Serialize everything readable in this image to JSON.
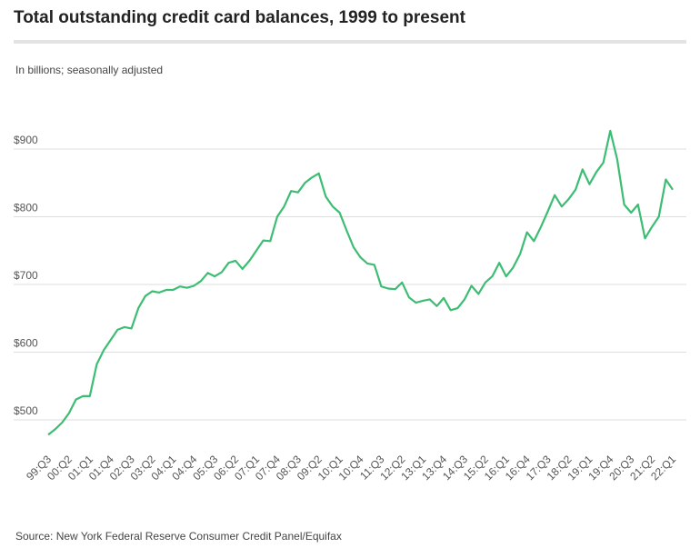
{
  "chart_data": {
    "type": "line",
    "title": "Total outstanding credit card balances, 1999 to present",
    "subtitle": "In billions; seasonally adjusted",
    "source": "Source: New York Federal Reserve Consumer Credit Panel/Equifax",
    "categories": [
      "99:Q3",
      null,
      null,
      "00:Q2",
      null,
      null,
      "01:Q1",
      null,
      null,
      "01:Q4",
      null,
      null,
      "02:Q3",
      null,
      null,
      "03:Q2",
      null,
      null,
      "04:Q1",
      null,
      null,
      "04:Q4",
      null,
      null,
      "05:Q3",
      null,
      null,
      "06:Q2",
      null,
      null,
      "07:Q1",
      null,
      null,
      "07:Q4",
      null,
      null,
      "08:Q3",
      null,
      null,
      "09:Q2",
      null,
      null,
      "10:Q1",
      null,
      null,
      "10:Q4",
      null,
      null,
      "11:Q3",
      null,
      null,
      "12:Q2",
      null,
      null,
      "13:Q1",
      null,
      null,
      "13:Q4",
      null,
      null,
      "14:Q3",
      null,
      null,
      "15:Q2",
      null,
      null,
      "16:Q1",
      null,
      null,
      "16:Q4",
      null,
      null,
      "17:Q3",
      null,
      null,
      "18:Q2",
      null,
      null,
      "19:Q1",
      null,
      null,
      "19:Q4",
      null,
      null,
      "20:Q3",
      null,
      null,
      "21:Q2",
      null,
      null,
      "22:Q1"
    ],
    "series": [
      {
        "name": "Balances",
        "color": "#3dbd73",
        "values": [
          478,
          486,
          496,
          510,
          530,
          535,
          535,
          582,
          603,
          618,
          633,
          637,
          635,
          665,
          683,
          690,
          688,
          692,
          692,
          697,
          695,
          698,
          705,
          717,
          712,
          718,
          732,
          735,
          723,
          735,
          750,
          765,
          764,
          800,
          815,
          838,
          836,
          850,
          858,
          864,
          830,
          815,
          806,
          780,
          755,
          740,
          731,
          729,
          697,
          694,
          693,
          703,
          681,
          673,
          676,
          678,
          668,
          680,
          662,
          665,
          678,
          698,
          686,
          703,
          712,
          732,
          712,
          725,
          745,
          777,
          764,
          785,
          808,
          832,
          815,
          826,
          840,
          870,
          848,
          866,
          880,
          927,
          885,
          818,
          806,
          818,
          768,
          785,
          800,
          855,
          840
        ]
      }
    ],
    "ylim": [
      460,
      960
    ],
    "yticks": [
      {
        "value": 500,
        "label": "$500"
      },
      {
        "value": 600,
        "label": "$600"
      },
      {
        "value": 700,
        "label": "$700"
      },
      {
        "value": 800,
        "label": "$800"
      },
      {
        "value": 900,
        "label": "$900"
      }
    ],
    "grid": true
  }
}
